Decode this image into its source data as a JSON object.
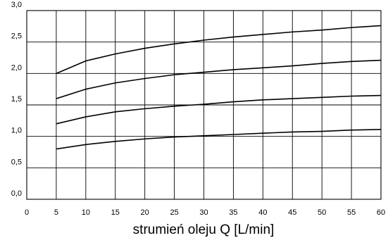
{
  "chart_data": {
    "type": "line",
    "title": "",
    "xlabel": "strumień oleju Q [L/min]",
    "ylabel": "",
    "xlim": [
      0,
      60
    ],
    "ylim": [
      0,
      3.0
    ],
    "grid": true,
    "xticks": [
      0,
      5,
      10,
      15,
      20,
      25,
      30,
      35,
      40,
      45,
      50,
      55,
      60
    ],
    "yticks": [
      0,
      0.5,
      1.0,
      1.5,
      2.0,
      2.5,
      3.0
    ],
    "xtick_labels": [
      "0",
      "5",
      "10",
      "15",
      "20",
      "25",
      "30",
      "35",
      "40",
      "45",
      "50",
      "55",
      "60"
    ],
    "ytick_labels": [
      "0,0",
      "0,5",
      "1,0",
      "1,5",
      "2,0",
      "2,5",
      "3,0"
    ],
    "x": [
      5,
      10,
      15,
      20,
      25,
      30,
      35,
      40,
      45,
      50,
      55,
      60
    ],
    "series": [
      {
        "values": [
          2.0,
          2.2,
          2.31,
          2.4,
          2.47,
          2.53,
          2.58,
          2.62,
          2.66,
          2.69,
          2.73,
          2.76
        ]
      },
      {
        "values": [
          1.6,
          1.75,
          1.85,
          1.92,
          1.98,
          2.02,
          2.06,
          2.09,
          2.12,
          2.16,
          2.19,
          2.21
        ]
      },
      {
        "values": [
          1.2,
          1.31,
          1.39,
          1.44,
          1.48,
          1.51,
          1.55,
          1.58,
          1.6,
          1.62,
          1.64,
          1.65
        ]
      },
      {
        "values": [
          0.8,
          0.87,
          0.92,
          0.96,
          0.99,
          1.01,
          1.03,
          1.05,
          1.07,
          1.08,
          1.1,
          1.11
        ]
      }
    ]
  }
}
